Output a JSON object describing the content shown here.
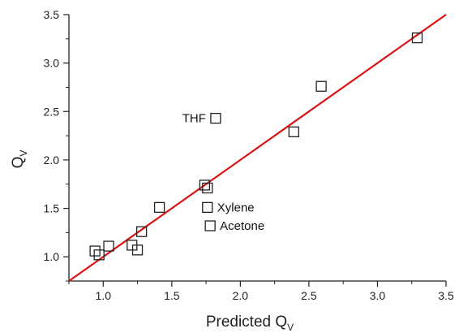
{
  "chart_data": {
    "type": "scatter",
    "xlabel": {
      "main": "Predicted Q",
      "sub": "V"
    },
    "ylabel": {
      "main": "Q",
      "sub": "V"
    },
    "xlim": [
      0.75,
      3.5
    ],
    "ylim": [
      0.75,
      3.5
    ],
    "xticks": [
      "1.0",
      "1.5",
      "2.0",
      "2.5",
      "3.0",
      "3.5"
    ],
    "yticks": [
      "1.0",
      "1.5",
      "2.0",
      "2.5",
      "3.0",
      "3.5"
    ],
    "grid": false,
    "marker_color": "#222222",
    "line_color": "#dd1111",
    "points": [
      {
        "x": 0.94,
        "y": 1.06,
        "label": ""
      },
      {
        "x": 0.97,
        "y": 1.02,
        "label": ""
      },
      {
        "x": 1.04,
        "y": 1.11,
        "label": ""
      },
      {
        "x": 1.21,
        "y": 1.12,
        "label": ""
      },
      {
        "x": 1.25,
        "y": 1.07,
        "label": ""
      },
      {
        "x": 1.28,
        "y": 1.26,
        "label": ""
      },
      {
        "x": 1.41,
        "y": 1.51,
        "label": ""
      },
      {
        "x": 1.74,
        "y": 1.74,
        "label": ""
      },
      {
        "x": 1.76,
        "y": 1.71,
        "label": ""
      },
      {
        "x": 1.76,
        "y": 1.51,
        "label": "Xylene"
      },
      {
        "x": 1.78,
        "y": 1.32,
        "label": "Acetone"
      },
      {
        "x": 1.82,
        "y": 2.43,
        "label": "THF"
      },
      {
        "x": 2.39,
        "y": 2.29,
        "label": ""
      },
      {
        "x": 2.59,
        "y": 2.76,
        "label": ""
      },
      {
        "x": 3.29,
        "y": 3.26,
        "label": ""
      }
    ],
    "fit_line": {
      "x": [
        0.75,
        3.5
      ],
      "y": [
        0.75,
        3.5
      ]
    }
  }
}
